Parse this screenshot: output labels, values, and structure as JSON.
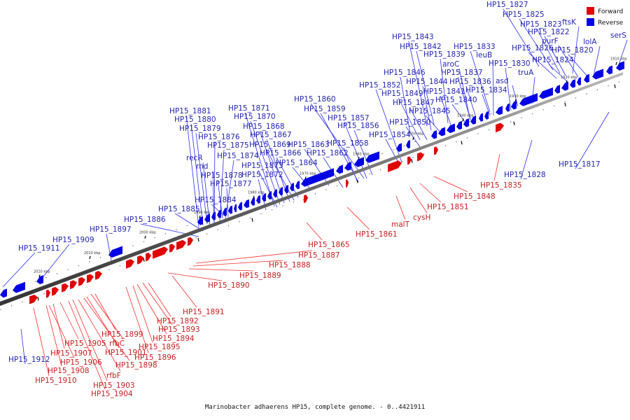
{
  "caption": "Marinobacter adhaerens HP15, complete genome. - 0..4421911",
  "legend": [
    {
      "label": "Forward",
      "color": "#e00000"
    },
    {
      "label": "Reverse",
      "color": "#0000e6"
    }
  ],
  "ticks": [
    "2020 kbp",
    "2010 kbp",
    "2000 kbp",
    "1990 kbp",
    "1980 kbp",
    "1970 kbp",
    "1960 kbp",
    "1950 kbp",
    "1940 kbp",
    "1930 kbp",
    "1920 kbp",
    "1910 kbp"
  ],
  "reverse_labels": [
    "HP15_1827",
    "HP15_1825",
    "ftsK",
    "HP15_1823",
    "HP15_1822",
    "purF",
    "lolA",
    "serS",
    "HP15_1826",
    "HP15_1820",
    "HP15_1824",
    "HP15_1843",
    "HP15_1842",
    "HP15_1833",
    "HP15_1839",
    "leuB",
    "aroC",
    "HP15_1830",
    "asd",
    "HP15_1846",
    "HP15_1837",
    "truA",
    "HP15_1844",
    "HP15_1836",
    "HP15_1852",
    "HP15_1841",
    "HP15_1834",
    "HP15_1849",
    "HP15_1840",
    "HP15_1847",
    "HP15_1845",
    "HP15_1850",
    "HP15_1854",
    "HP15_1860",
    "HP15_1859",
    "HP15_1857",
    "HP15_1856",
    "HP15_1863",
    "HP15_1858",
    "HP15_1862",
    "HP15_1864",
    "HP15_1871",
    "HP15_1870",
    "HP15_1868",
    "HP15_1867",
    "HP15_1869",
    "HP15_1866",
    "HP15_1873",
    "HP15_1872",
    "HP15_1881",
    "HP15_1880",
    "HP15_1879",
    "HP15_1876",
    "HP15_1875",
    "HP15_1874",
    "recR",
    "rnd",
    "HP15_1878",
    "HP15_1877",
    "HP15_1884",
    "HP15_1885",
    "HP15_1886",
    "HP15_1897",
    "HP15_1909",
    "HP15_1911",
    "HP15_1912",
    "HP15_1817",
    "HP15_1828"
  ],
  "forward_labels": [
    "HP15_1835",
    "HP15_1848",
    "HP15_1851",
    "cysH",
    "malT",
    "HP15_1861",
    "HP15_1865",
    "HP15_1887",
    "HP15_1888",
    "HP15_1889",
    "HP15_1890",
    "HP15_1891",
    "HP15_1892",
    "HP15_1893",
    "HP15_1894",
    "HP15_1895",
    "HP15_1896",
    "HP15_1899",
    "rfbC",
    "HP15_1901",
    "HP15_1898",
    "HP15_1905",
    "HP15_1907",
    "HP15_1906",
    "HP15_1908",
    "rfbF",
    "HP15_1903",
    "HP15_1910",
    "HP15_1904"
  ]
}
